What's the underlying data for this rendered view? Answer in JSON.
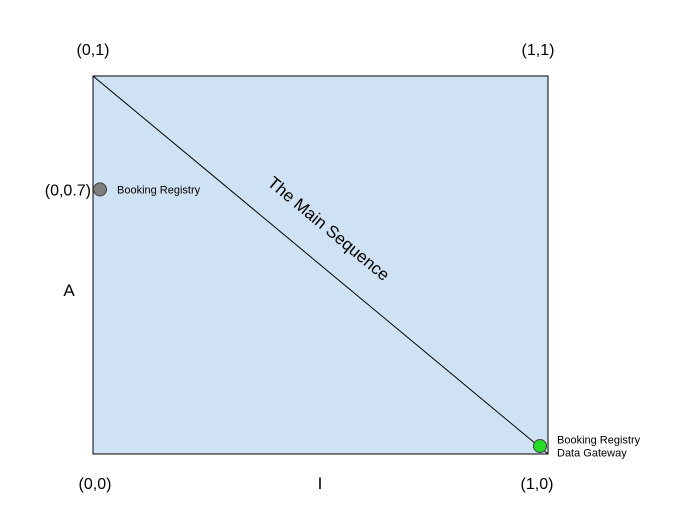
{
  "diagram": {
    "corners": {
      "top_left": "(0,1)",
      "top_right": "(1,1)",
      "bottom_left": "(0,0)",
      "bottom_right": "(1,0)"
    },
    "axis_labels": {
      "y": "A",
      "x": "I"
    },
    "main_sequence_label": "The Main Sequence",
    "colors": {
      "plot_fill": "#cfe2f3",
      "point_gray": "#7f7f7f",
      "point_green": "#22dd22"
    }
  },
  "chart_data": {
    "type": "scatter",
    "xlim": [
      0,
      1
    ],
    "ylim": [
      0,
      1
    ],
    "line": {
      "from": [
        0,
        1
      ],
      "to": [
        1,
        0
      ],
      "label": "The Main Sequence"
    },
    "points": [
      {
        "x": 0,
        "y": 0.7,
        "value_label": "(0,0.7)",
        "label_lines": [
          "Booking Registry"
        ],
        "color": "#7f7f7f"
      },
      {
        "x": 1,
        "y": 0,
        "label_lines": [
          "Booking Registry",
          "Data Gateway"
        ],
        "color": "#22dd22"
      }
    ]
  }
}
